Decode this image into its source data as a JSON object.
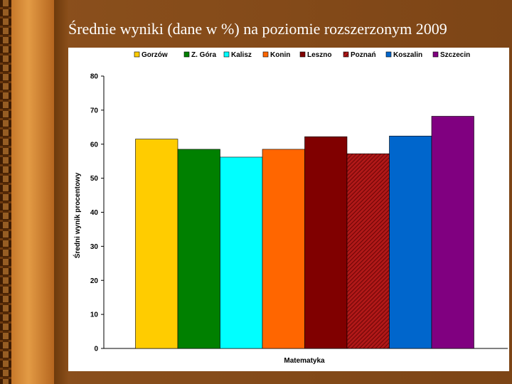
{
  "slide": {
    "title": "Średnie wyniki (dane w %) na poziomie rozszerzonym 2009"
  },
  "chart_data": {
    "type": "bar",
    "categories": [
      "Matematyka"
    ],
    "xlabel": "Matematyka",
    "ylabel": "Średni wynik procentowy",
    "ylim": [
      0,
      80
    ],
    "yticks": [
      0,
      10,
      20,
      30,
      40,
      50,
      60,
      70,
      80
    ],
    "legend_position": "top",
    "grid": false,
    "series": [
      {
        "name": "Gorzów",
        "values": [
          61.5
        ],
        "color": "#ffcc00",
        "pattern": "solid"
      },
      {
        "name": "Z. Góra",
        "values": [
          58.5
        ],
        "color": "#008000",
        "pattern": "solid"
      },
      {
        "name": "Kalisz",
        "values": [
          56.2
        ],
        "color": "#00ffff",
        "pattern": "solid"
      },
      {
        "name": "Konin",
        "values": [
          58.5
        ],
        "color": "#ff6600",
        "pattern": "solid"
      },
      {
        "name": "Leszno",
        "values": [
          62.2
        ],
        "color": "#800000",
        "pattern": "solid"
      },
      {
        "name": "Poznań",
        "values": [
          57.2
        ],
        "color": "#b01818",
        "pattern": "hatched"
      },
      {
        "name": "Koszalin",
        "values": [
          62.4
        ],
        "color": "#0066cc",
        "pattern": "solid"
      },
      {
        "name": "Szczecin",
        "values": [
          68.2
        ],
        "color": "#800080",
        "pattern": "solid"
      }
    ]
  }
}
